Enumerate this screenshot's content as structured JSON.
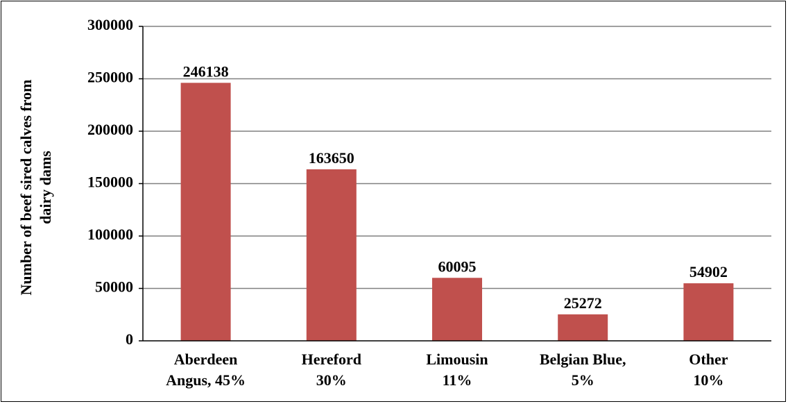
{
  "chart_data": {
    "type": "bar",
    "y_label": "Number of beef sired calves from\ndairy dams",
    "categories": [
      "Aberdeen\nAngus, 45%",
      "Hereford\n30%",
      "Limousin\n11%",
      "Belgian Blue,\n5%",
      "Other\n10%"
    ],
    "values": [
      246138,
      163650,
      60095,
      25272,
      54902
    ],
    "color": "#c0504d",
    "ylim": [
      0,
      300000
    ],
    "yticks": [
      0,
      50000,
      100000,
      150000,
      200000,
      250000,
      300000
    ],
    "grid": true
  }
}
